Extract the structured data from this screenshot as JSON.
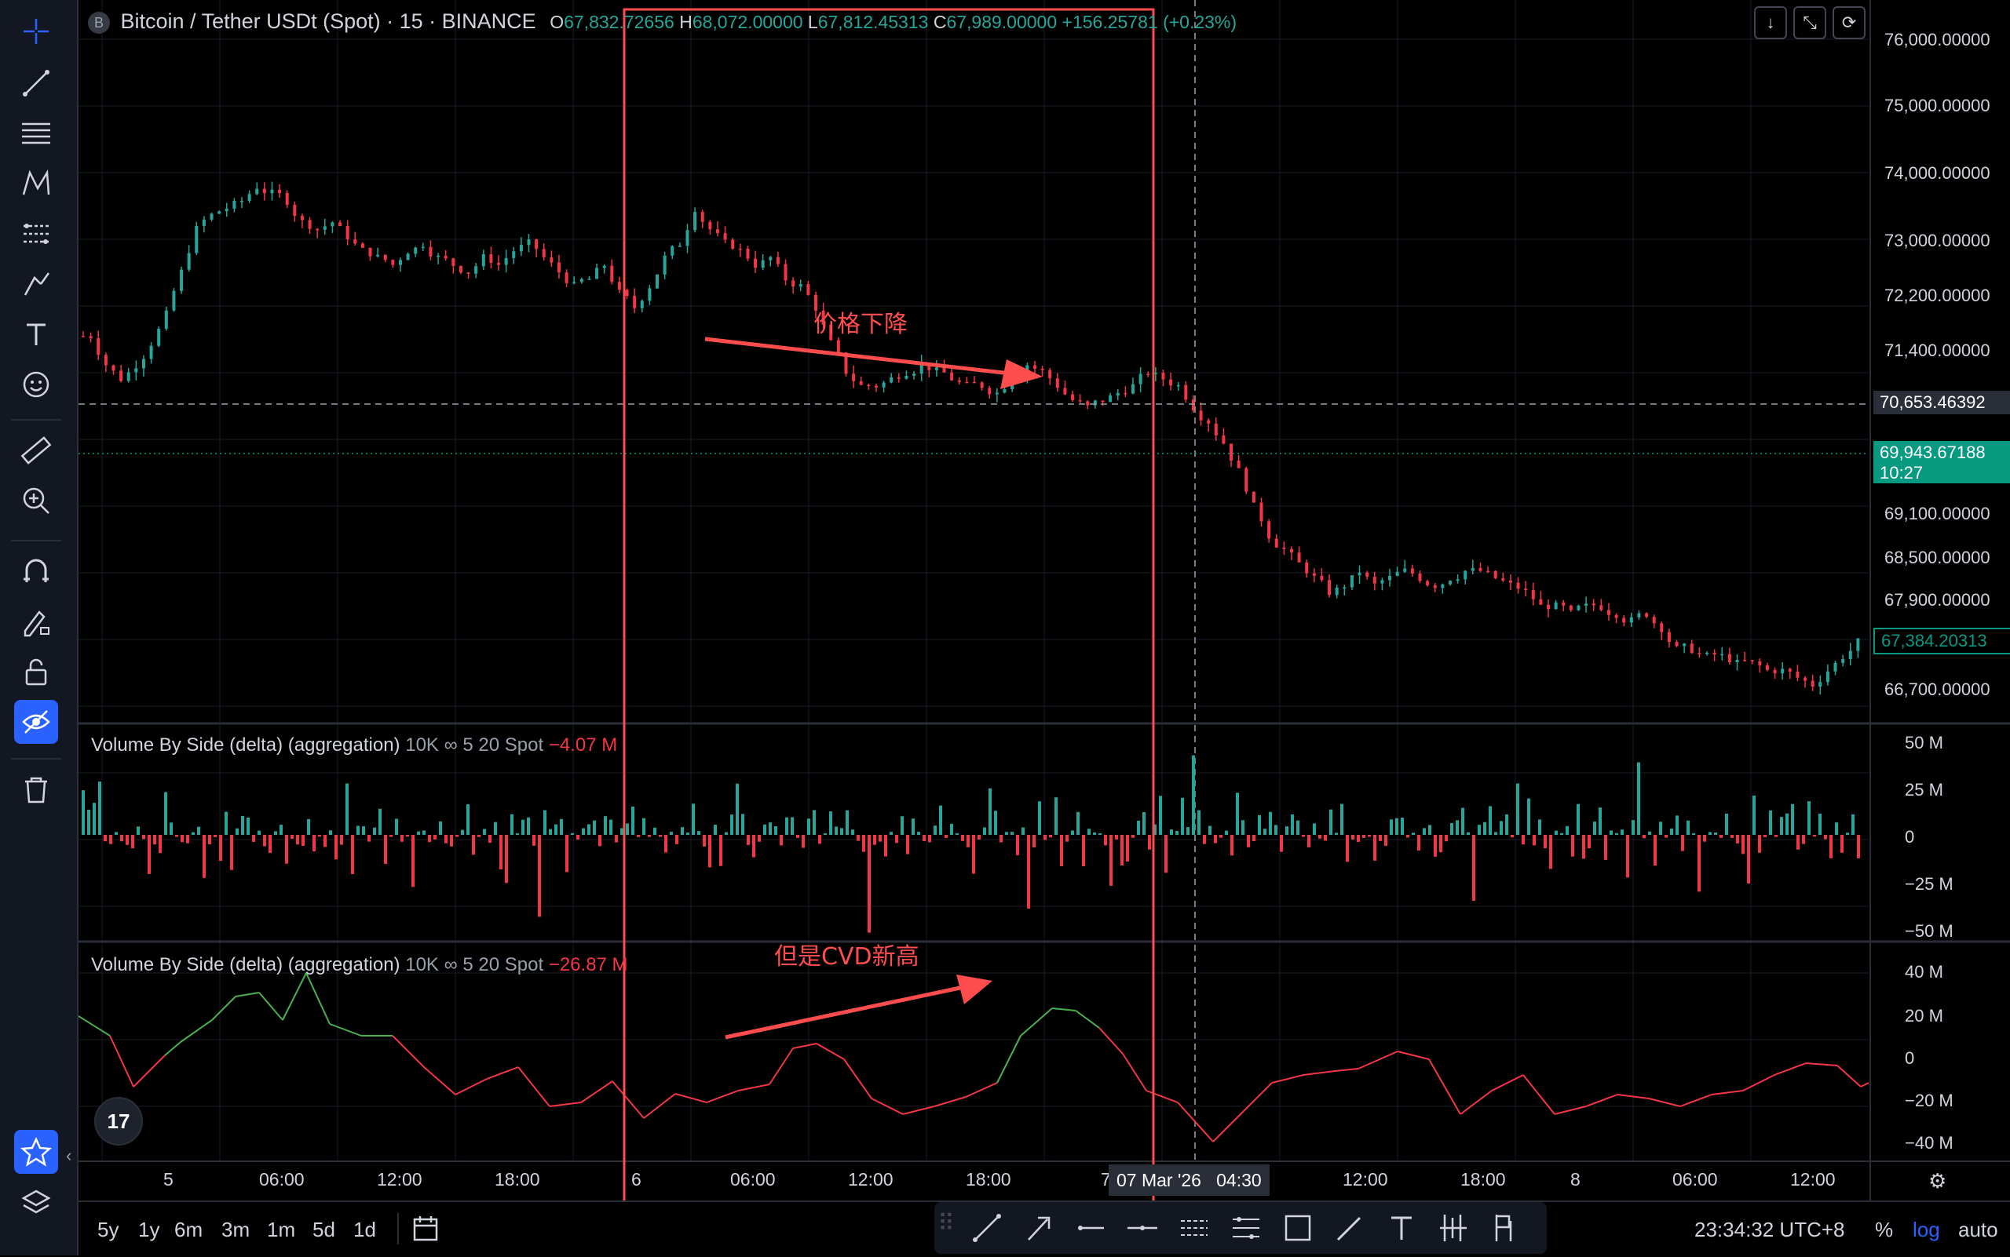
{
  "legend": {
    "symbol_icon_letter": "B",
    "title": "Bitcoin / Tether USDt (Spot) · 15 · BINANCE",
    "o_label": "O",
    "o_value": "67,832.72656",
    "h_label": "H",
    "h_value": "68,072.00000",
    "l_label": "L",
    "l_value": "67,812.45313",
    "c_label": "C",
    "c_value": "67,989.00000",
    "change": "+156.25781 (+0.23%)"
  },
  "top_buttons": [
    "↓",
    "⤡",
    "⟳"
  ],
  "price_axis": {
    "labels": [
      "76,000.00000",
      "75,000.00000",
      "74,000.00000",
      "73,000.00000",
      "72,200.00000",
      "71,400.00000",
      "69,100.00000",
      "68,500.00000",
      "67,900.00000",
      "66,700.00000"
    ],
    "crosshair_price": "70,653.46392",
    "last_price": "69,943.67188",
    "countdown": "10:27",
    "current_price": "67,384.20313"
  },
  "panel1": {
    "name": "Volume By Side (delta) (aggregation)",
    "params": "10K ∞ 5 20 Spot",
    "value": "−4.07 M",
    "axis": [
      "50 M",
      "25 M",
      "0",
      "−25 M",
      "−50 M"
    ]
  },
  "panel2": {
    "name": "Volume By Side (delta) (aggregation)",
    "params": "10K ∞ 5 20 Spot",
    "value": "−26.87 M",
    "axis": [
      "40 M",
      "20 M",
      "0",
      "−20 M",
      "−40 M"
    ]
  },
  "time_axis": {
    "labels": [
      "5",
      "06:00",
      "12:00",
      "18:00",
      "6",
      "06:00",
      "12:00",
      "18:00",
      "7",
      "12:00",
      "18:00",
      "8",
      "06:00",
      "12:00"
    ],
    "crosshair_time": "07 Mar '26   04:30"
  },
  "annotations": {
    "price_drop": "价格下降",
    "cvd_high": "但是CVD新高"
  },
  "bottom_bar": {
    "ranges": [
      "5y",
      "1y",
      "6m",
      "3m",
      "1m",
      "5d",
      "1d"
    ],
    "clock": "23:34:32 UTC+8",
    "percent": "%",
    "log": "log",
    "auto": "auto"
  },
  "logo_text": "17",
  "colors": {
    "up": "#26a69a",
    "down": "#f23645",
    "accent": "#2962ff",
    "annotation": "#ff4d4d",
    "cvd_up": "#4caf50",
    "cvd_down": "#f23645"
  },
  "chart_data": {
    "type": "candlestick",
    "price_range": [
      66500,
      76200
    ],
    "approx_closes": [
      71700,
      71300,
      71100,
      71300,
      71600,
      72000,
      72600,
      73200,
      73400,
      73500,
      73600,
      73800,
      73700,
      73600,
      73300,
      73200,
      73300,
      73100,
      72900,
      72800,
      72700,
      72900,
      73000,
      72800,
      72700,
      72600,
      72800,
      72700,
      72900,
      73000,
      72800,
      72600,
      72400,
      72500,
      72700,
      72300,
      72100,
      72400,
      72800,
      73000,
      73500,
      73200,
      73000,
      72900,
      72700,
      72800,
      72500,
      72400,
      72100,
      71600,
      71200,
      71000,
      71000,
      71100,
      71200,
      71300,
      71200,
      71100,
      71000,
      71000,
      70900,
      71100,
      71300,
      71200,
      71000,
      70800,
      70700,
      70800,
      70900,
      71000,
      71200,
      71100,
      71000,
      70700,
      70500,
      70200,
      69800,
      69300,
      68900,
      68700,
      68500,
      68300,
      68100,
      68200,
      68400,
      68200,
      68300,
      68400,
      68300,
      68200,
      68300,
      68400,
      68400,
      68300,
      68200,
      68100,
      67900,
      67900,
      67800,
      67900,
      67900,
      67800,
      67700,
      67800,
      67600,
      67300,
      67300,
      67200,
      67200,
      67100,
      67100,
      67000,
      67000,
      66900,
      66800,
      67000,
      67200,
      67400
    ]
  }
}
